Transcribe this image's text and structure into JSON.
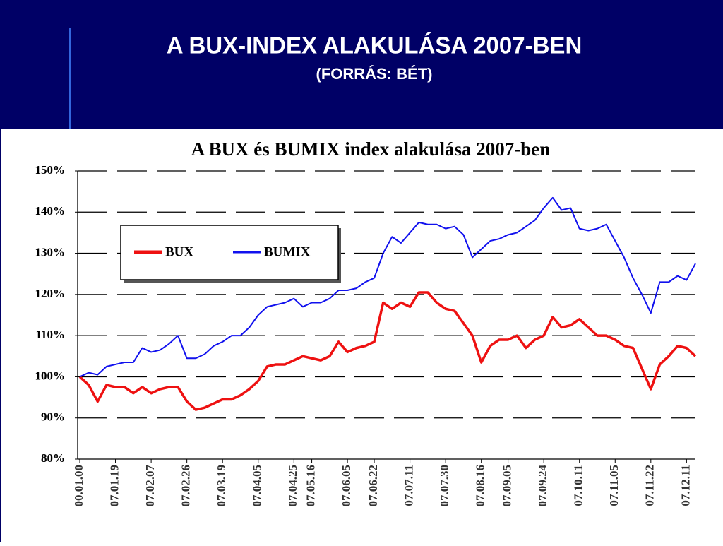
{
  "slide": {
    "title": "A BUX-INDEX ALAKULÁSA 2007-BEN",
    "subtitle": "(FORRÁS: BÉT)"
  },
  "chart_data": {
    "type": "line",
    "title": "A BUX és BUMIX index alakulása 2007-ben",
    "categories": [
      "00.01.00",
      null,
      null,
      null,
      "07.01.19",
      null,
      null,
      null,
      "07.02.07",
      null,
      null,
      null,
      "07.02.26",
      null,
      null,
      null,
      "07.03.19",
      null,
      null,
      null,
      "07.04.05",
      null,
      null,
      null,
      "07.04.25",
      null,
      "07.05.16",
      null,
      null,
      null,
      "07.06.05",
      null,
      null,
      "07.06.22",
      null,
      null,
      null,
      "07.07.11",
      null,
      null,
      null,
      "07.07.30",
      null,
      null,
      null,
      "07.08.16",
      null,
      null,
      "07.09.05",
      null,
      null,
      null,
      "07.09.24",
      null,
      null,
      null,
      "07.10.11",
      null,
      null,
      null,
      "07.11.05",
      null,
      null,
      null,
      "07.11.22",
      null,
      null,
      null,
      "07.12.11",
      null
    ],
    "series": [
      {
        "name": "BUX",
        "color": "#ee1111",
        "values": [
          100,
          98,
          94,
          98,
          97.5,
          97.5,
          96,
          97.5,
          96,
          97,
          97.5,
          97.5,
          94,
          92,
          92.5,
          93.5,
          94.5,
          94.5,
          95.5,
          97,
          99,
          102.5,
          103,
          103,
          104,
          105,
          104.5,
          104,
          105,
          108.5,
          106,
          107,
          107.5,
          108.5,
          118,
          116.5,
          118,
          117,
          120.5,
          120.5,
          118,
          116.5,
          116,
          113,
          110,
          103.5,
          107.5,
          109,
          109,
          110,
          107,
          109,
          110,
          114.5,
          112,
          112.5,
          114,
          112,
          110,
          110,
          109,
          107.5,
          107,
          102,
          97,
          103,
          105,
          107.5,
          107,
          105
        ]
      },
      {
        "name": "BUMIX",
        "color": "#1111ee",
        "values": [
          100,
          101,
          100.5,
          102.5,
          103,
          103.5,
          103.5,
          107,
          106,
          106.5,
          108,
          110,
          104.5,
          104.5,
          105.5,
          107.5,
          108.5,
          110,
          110,
          112,
          115,
          117,
          117.5,
          118,
          119,
          117,
          118,
          118,
          119,
          121,
          121,
          121.5,
          123,
          124,
          130,
          134,
          132.5,
          135,
          137.5,
          137,
          137,
          136,
          136.5,
          134.5,
          129,
          131,
          133,
          133.5,
          134.5,
          135,
          136.5,
          138,
          141,
          143.5,
          140.5,
          141,
          136,
          135.5,
          136,
          137,
          133,
          129,
          124,
          120,
          115.5,
          123,
          123,
          124.5,
          123.5,
          127.5
        ]
      }
    ],
    "ylim": [
      80,
      150
    ],
    "yticks": [
      {
        "value": 80,
        "label": "80%"
      },
      {
        "value": 90,
        "label": "90%"
      },
      {
        "value": 100,
        "label": "100%"
      },
      {
        "value": 110,
        "label": "110%"
      },
      {
        "value": 120,
        "label": "120%"
      },
      {
        "value": 130,
        "label": "130%"
      },
      {
        "value": 140,
        "label": "140%"
      },
      {
        "value": 150,
        "label": "150%"
      }
    ],
    "grid": true
  }
}
